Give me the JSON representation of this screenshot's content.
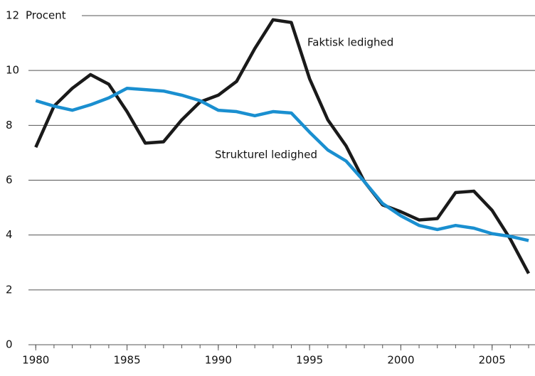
{
  "chart_data": {
    "type": "line",
    "y_axis_label": "Procent",
    "x": [
      1980,
      1981,
      1982,
      1983,
      1984,
      1985,
      1986,
      1987,
      1988,
      1989,
      1990,
      1991,
      1992,
      1993,
      1994,
      1995,
      1996,
      1997,
      1998,
      1999,
      2000,
      2001,
      2002,
      2003,
      2004,
      2005,
      2006,
      2007
    ],
    "series": [
      {
        "name": "Faktisk ledighed",
        "color": "#1a1a1a",
        "values": [
          7.2,
          8.7,
          9.35,
          9.85,
          9.5,
          8.5,
          7.35,
          7.4,
          8.2,
          8.85,
          9.1,
          9.6,
          10.8,
          11.85,
          11.75,
          9.7,
          8.2,
          7.25,
          5.95,
          5.1,
          4.85,
          4.55,
          4.6,
          5.55,
          5.6,
          4.9,
          3.85,
          2.6
        ]
      },
      {
        "name": "Strukturel ledighed",
        "color": "#1a8fd0",
        "values": [
          8.9,
          8.7,
          8.55,
          8.75,
          9.0,
          9.35,
          9.3,
          9.25,
          9.1,
          8.9,
          8.55,
          8.5,
          8.35,
          8.5,
          8.45,
          7.75,
          7.1,
          6.7,
          5.95,
          5.15,
          4.7,
          4.35,
          4.2,
          4.35,
          4.25,
          4.05,
          3.95,
          3.8
        ]
      }
    ],
    "xlim": [
      1979.6,
      2007.35
    ],
    "xticks": [
      1980,
      1985,
      1990,
      1995,
      2000,
      2005
    ],
    "ylim": [
      0,
      12
    ],
    "yticks": [
      0,
      2,
      4,
      6,
      8,
      10,
      12
    ],
    "grid": true
  }
}
